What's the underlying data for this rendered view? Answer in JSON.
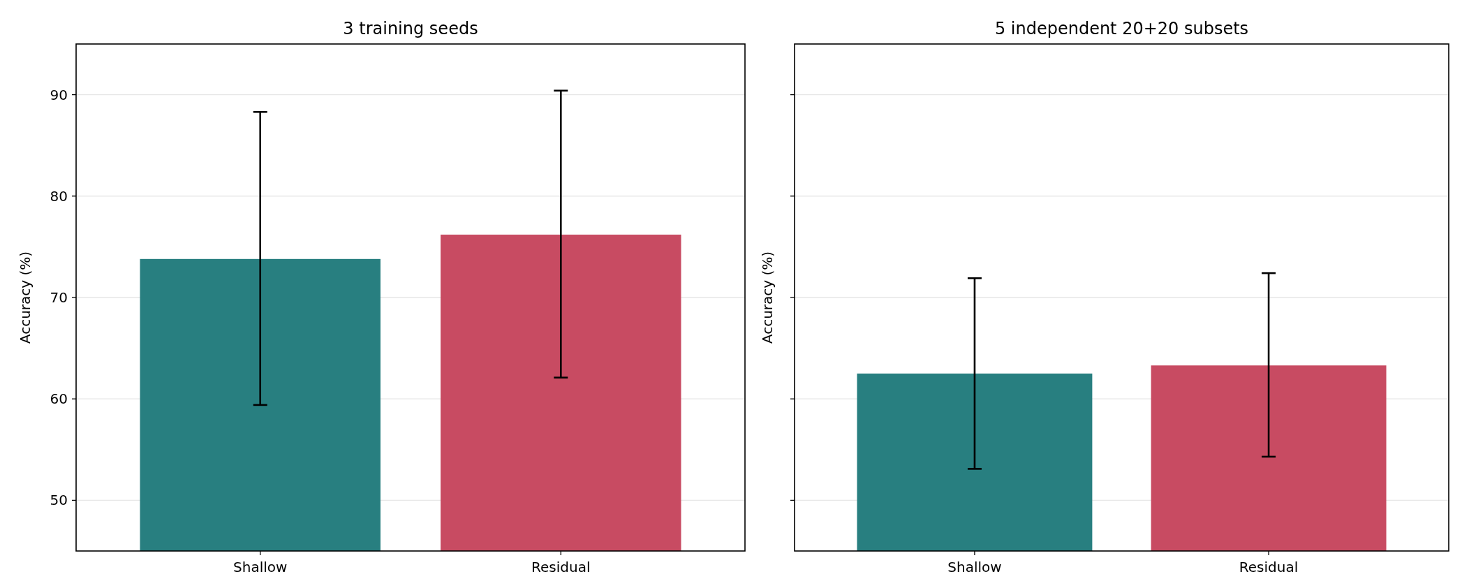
{
  "chart_data": [
    {
      "type": "bar",
      "title": "3 training seeds",
      "ylabel": "Accuracy (%)",
      "categories": [
        "Shallow",
        "Residual"
      ],
      "values": [
        73.8,
        76.2
      ],
      "colors": [
        "#287f80",
        "#c84b62"
      ],
      "errors": [
        [
          59.4,
          88.3
        ],
        [
          62.1,
          90.4
        ]
      ],
      "ylim": [
        45,
        95
      ],
      "yticks": [
        50,
        60,
        70,
        80,
        90
      ],
      "grid": "y"
    },
    {
      "type": "bar",
      "title": "5 independent 20+20 subsets",
      "ylabel": "Accuracy (%)",
      "categories": [
        "Shallow",
        "Residual"
      ],
      "values": [
        62.5,
        63.3
      ],
      "colors": [
        "#287f80",
        "#c84b62"
      ],
      "errors": [
        [
          53.1,
          71.9
        ],
        [
          54.3,
          72.4
        ]
      ],
      "ylim": [
        45,
        95
      ],
      "yticks": [
        50,
        60,
        70,
        80,
        90
      ],
      "grid": "y",
      "tick_labels": "x"
    }
  ]
}
